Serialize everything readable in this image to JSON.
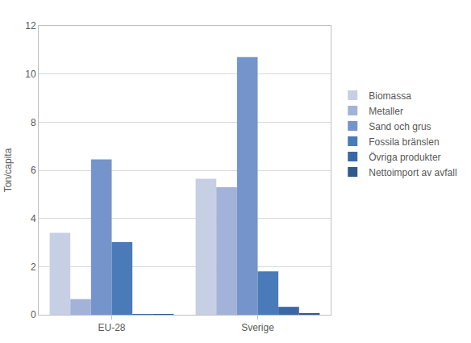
{
  "chart_data": {
    "type": "bar",
    "y_label": "Ton/capita",
    "categories": [
      "EU-28",
      "Sverige"
    ],
    "series": [
      {
        "name": "Biomassa",
        "color": "#c6cfe4",
        "values": [
          3.4,
          5.65
        ]
      },
      {
        "name": "Metaller",
        "color": "#a3b2d8",
        "values": [
          0.65,
          5.3
        ]
      },
      {
        "name": "Sand och grus",
        "color": "#7594cb",
        "values": [
          6.45,
          10.7
        ]
      },
      {
        "name": "Fossila bränslen",
        "color": "#4a7ab8",
        "values": [
          3.02,
          1.8
        ]
      },
      {
        "name": "Övriga produkter",
        "color": "#3a68a5",
        "values": [
          0.02,
          0.33
        ]
      },
      {
        "name": "Nettoimport av avfall",
        "color": "#2f5a8f",
        "values": [
          0.02,
          0.07
        ]
      }
    ],
    "ylim": [
      0,
      12
    ],
    "yticks": [
      0,
      2,
      4,
      6,
      8,
      10,
      12
    ],
    "grid": true,
    "legend": "right"
  }
}
